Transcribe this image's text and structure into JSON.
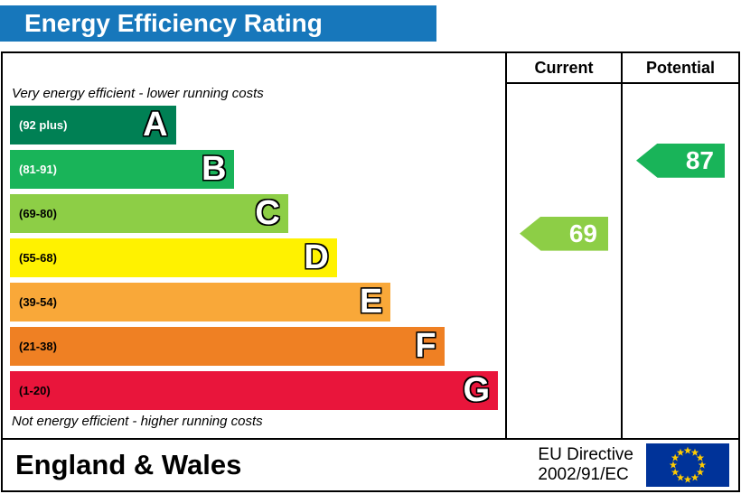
{
  "title": "Energy Efficiency Rating",
  "table": {
    "current_header": "Current",
    "potential_header": "Potential",
    "top_note": "Very energy efficient - lower running costs",
    "bottom_note": "Not energy efficient - higher running costs"
  },
  "footer": {
    "region": "England & Wales",
    "directive_line1": "EU Directive",
    "directive_line2": "2002/91/EC",
    "flag_icon": "eu-flag"
  },
  "colors": {
    "title_bg": "#1777bb",
    "title_text": "#ffffff",
    "border": "#000000",
    "flag_bg": "#003399",
    "flag_stars": "#ffcc00"
  },
  "chart_data": {
    "type": "bar",
    "title": "Energy Efficiency Rating",
    "bands": [
      {
        "letter": "A",
        "range_label": "(92 plus)",
        "color": "#008054",
        "text_color": "#ffffff",
        "width_pct": 34
      },
      {
        "letter": "B",
        "range_label": "(81-91)",
        "color": "#19b459",
        "text_color": "#ffffff",
        "width_pct": 46
      },
      {
        "letter": "C",
        "range_label": "(69-80)",
        "color": "#8dce46",
        "text_color": "#000000",
        "width_pct": 57
      },
      {
        "letter": "D",
        "range_label": "(55-68)",
        "color": "#fff200",
        "text_color": "#000000",
        "width_pct": 67
      },
      {
        "letter": "E",
        "range_label": "(39-54)",
        "color": "#f9a839",
        "text_color": "#000000",
        "width_pct": 78
      },
      {
        "letter": "F",
        "range_label": "(21-38)",
        "color": "#ef8023",
        "text_color": "#000000",
        "width_pct": 89
      },
      {
        "letter": "G",
        "range_label": "(1-20)",
        "color": "#e9153b",
        "text_color": "#000000",
        "width_pct": 100
      }
    ],
    "markers": {
      "current": {
        "value": 69,
        "band": "C",
        "color": "#8dce46",
        "row_position": 2.4
      },
      "potential": {
        "value": 87,
        "band": "B",
        "color": "#19b459",
        "row_position": 0.75
      }
    }
  }
}
